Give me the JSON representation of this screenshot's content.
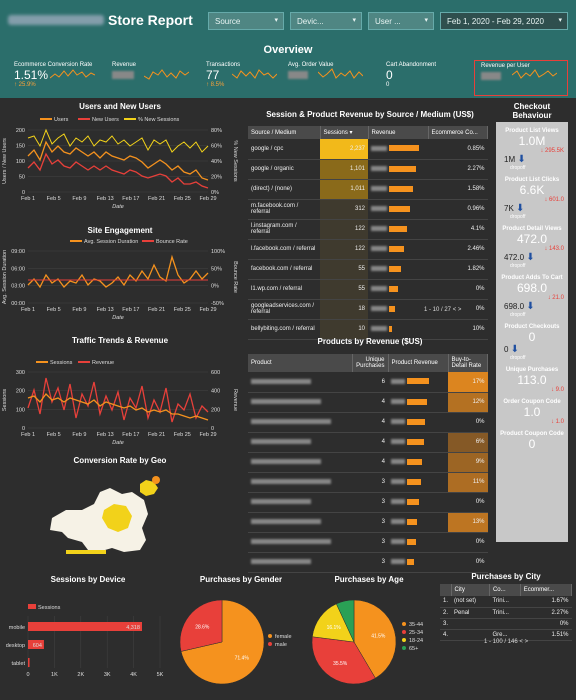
{
  "header": {
    "title": "Store Report",
    "filters": [
      "Source",
      "Devic...",
      "User ...",
      "Feb 1, 2020 - Feb 29, 2020"
    ]
  },
  "overview": {
    "title": "Overview",
    "kpis": [
      {
        "label": "Ecommerce Conversion Rate",
        "value": "1.51%",
        "delta": "↑ 25.9%"
      },
      {
        "label": "Revenue",
        "value": "",
        "delta": ""
      },
      {
        "label": "Transactions",
        "value": "77",
        "delta": "↑ 8.5%"
      },
      {
        "label": "Avg. Order Value",
        "value": "",
        "delta": ""
      },
      {
        "label": "Cart Abandonment",
        "value": "0",
        "delta": "0"
      },
      {
        "label": "Revenue per User",
        "value": "",
        "delta": ""
      }
    ]
  },
  "sections": {
    "users": "Users and New Users",
    "engagement": "Site Engagement",
    "traffic": "Traffic Trends & Revenue",
    "geo": "Conversion Rate by Geo",
    "source": "Session & Product Revenue by Source / Medium (US$)",
    "products": "Products by Revenue ($US)",
    "checkout": "Checkout Behaviour",
    "device": "Sessions by Device",
    "gender": "Purchases by Gender",
    "age": "Purchases by Age",
    "city": "Purchases by City"
  },
  "users_chart": {
    "legend": [
      "Users",
      "New Users",
      "% New Sessions"
    ],
    "ylabel": "Users / New Users",
    "y2label": "% New Sessions",
    "xlabel": "Date",
    "yticks": [
      "200",
      "150",
      "100",
      "50",
      "0"
    ],
    "y2ticks": [
      "80%",
      "60%",
      "40%",
      "20%",
      "0%"
    ],
    "xticks": [
      "Feb 1",
      "Feb 5",
      "Feb 9",
      "Feb 13",
      "Feb 17",
      "Feb 21",
      "Feb 25",
      "Feb 29"
    ]
  },
  "engagement_chart": {
    "legend": [
      "Avg. Session Duration",
      "Bounce Rate"
    ],
    "ylabel": "Avg. Session Duration",
    "y2label": "Bounce Rate",
    "xlabel": "Date",
    "yticks": [
      "09:00",
      "06:00",
      "03:00",
      "00:00"
    ],
    "y2ticks": [
      "100%",
      "50%",
      "0%",
      "-50%"
    ],
    "xticks": [
      "Feb 1",
      "Feb 5",
      "Feb 9",
      "Feb 13",
      "Feb 17",
      "Feb 21",
      "Feb 25",
      "Feb 29"
    ]
  },
  "traffic_chart": {
    "legend": [
      "Sessions",
      "Revenue"
    ],
    "ylabel": "Sessions",
    "y2label": "Revenue",
    "xlabel": "Date",
    "yticks": [
      "300",
      "200",
      "100",
      "0"
    ],
    "y2ticks": [
      "600",
      "400",
      "200",
      "0"
    ],
    "xticks": [
      "Feb 1",
      "Feb 5",
      "Feb 9",
      "Feb 13",
      "Feb 17",
      "Feb 21",
      "Feb 25",
      "Feb 29"
    ]
  },
  "source_table": {
    "headers": [
      "Source / Medium",
      "Sessions ▾",
      "Revenue",
      "Ecommerce Co..."
    ],
    "rows": [
      {
        "src": "google / cpc",
        "sess": "2,237",
        "conv": "0.85%"
      },
      {
        "src": "google / organic",
        "sess": "1,101",
        "conv": "2.27%"
      },
      {
        "src": "(direct) / (none)",
        "sess": "1,011",
        "conv": "1.58%"
      },
      {
        "src": "m.facebook.com / referral",
        "sess": "312",
        "conv": "0.96%"
      },
      {
        "src": "l.instagram.com / referral",
        "sess": "122",
        "conv": "4.1%"
      },
      {
        "src": "l.facebook.com / referral",
        "sess": "122",
        "conv": "2.46%"
      },
      {
        "src": "facebook.com / referral",
        "sess": "55",
        "conv": "1.82%"
      },
      {
        "src": "l1.wp.com / referral",
        "sess": "55",
        "conv": "0%"
      },
      {
        "src": "googleadservices.com / referral",
        "sess": "18",
        "conv": "0%"
      },
      {
        "src": "bellybiting.com / referral",
        "sess": "10",
        "conv": "10%"
      }
    ],
    "pager": "1 - 10 / 27"
  },
  "products_table": {
    "headers": [
      "Product",
      "Unique Purchases",
      "Product Revenue",
      "Buy-to-Detail Rate"
    ],
    "rows": [
      {
        "p": "6",
        "r": "17%"
      },
      {
        "p": "4",
        "r": "12%"
      },
      {
        "p": "4",
        "r": "0%"
      },
      {
        "p": "4",
        "r": "6%"
      },
      {
        "p": "4",
        "r": "9%"
      },
      {
        "p": "3",
        "r": "11%"
      },
      {
        "p": "3",
        "r": "0%"
      },
      {
        "p": "3",
        "r": "13%"
      },
      {
        "p": "3",
        "r": "0%"
      },
      {
        "p": "3",
        "r": "0%"
      }
    ]
  },
  "checkout": {
    "steps": [
      {
        "label": "Product List Views",
        "value": "1.0M",
        "delta": "↓ 295.5K"
      },
      {
        "label": "Product List Clicks",
        "value": "6.6K",
        "delta": "↓ 601.0"
      },
      {
        "label": "Product Detail Views",
        "value": "472.0",
        "delta": "↓ 143.0"
      },
      {
        "label": "Product Adds To Cart",
        "value": "698.0",
        "delta": "↓ 21.0"
      },
      {
        "label": "Product Checkouts",
        "value": "0",
        "delta": ""
      },
      {
        "label": "Unique Purchases",
        "value": "113.0",
        "delta": "↓ 9.0"
      },
      {
        "label": "Order Coupon Code",
        "value": "1.0",
        "delta": "↓ 1.0"
      },
      {
        "label": "Product Coupon Code",
        "value": "0",
        "delta": ""
      }
    ],
    "dropoffs": [
      "1M",
      "7K",
      "472.0",
      "698.0",
      "0"
    ],
    "dropoff_label": "dropoff"
  },
  "device_chart": {
    "legend": "Sessions",
    "categories": [
      "mobile",
      "desktop",
      "tablet"
    ],
    "values": [
      4318,
      604,
      59
    ],
    "value_labels": [
      "4,318",
      "604",
      ""
    ],
    "xticks": [
      "0",
      "1K",
      "2K",
      "3K",
      "4K",
      "5K"
    ]
  },
  "gender_chart": {
    "labels": [
      "female",
      "male"
    ],
    "values": [
      71.4,
      28.6
    ],
    "value_labels": [
      "71.4%",
      "28.6%"
    ],
    "colors": [
      "#f5921e",
      "#e8403a"
    ]
  },
  "age_chart": {
    "labels": [
      "35-44",
      "25-34",
      "18-24",
      "65+"
    ],
    "values": [
      41.5,
      35.5,
      16.1,
      6.9
    ],
    "value_labels": [
      "41.5%",
      "35.5%",
      "16.1%",
      ""
    ],
    "colors": [
      "#f5921e",
      "#e8403a",
      "#f2d21a",
      "#2aa055"
    ]
  },
  "city_table": {
    "headers": [
      "City",
      "Co...",
      "Ecommer..."
    ],
    "rows": [
      [
        "1.",
        "(not set)",
        "Trini...",
        "1.67%"
      ],
      [
        "2.",
        "Penal",
        "Trini...",
        "2.27%"
      ],
      [
        "3.",
        "",
        "",
        "0%"
      ],
      [
        "4.",
        "",
        "Gre...",
        "1.51%"
      ]
    ],
    "pager": "1 - 100 / 146"
  },
  "colors": {
    "header": "#2b6e6b",
    "orange": "#f5921e",
    "red": "#e8403a",
    "yellow": "#f2d21a"
  }
}
